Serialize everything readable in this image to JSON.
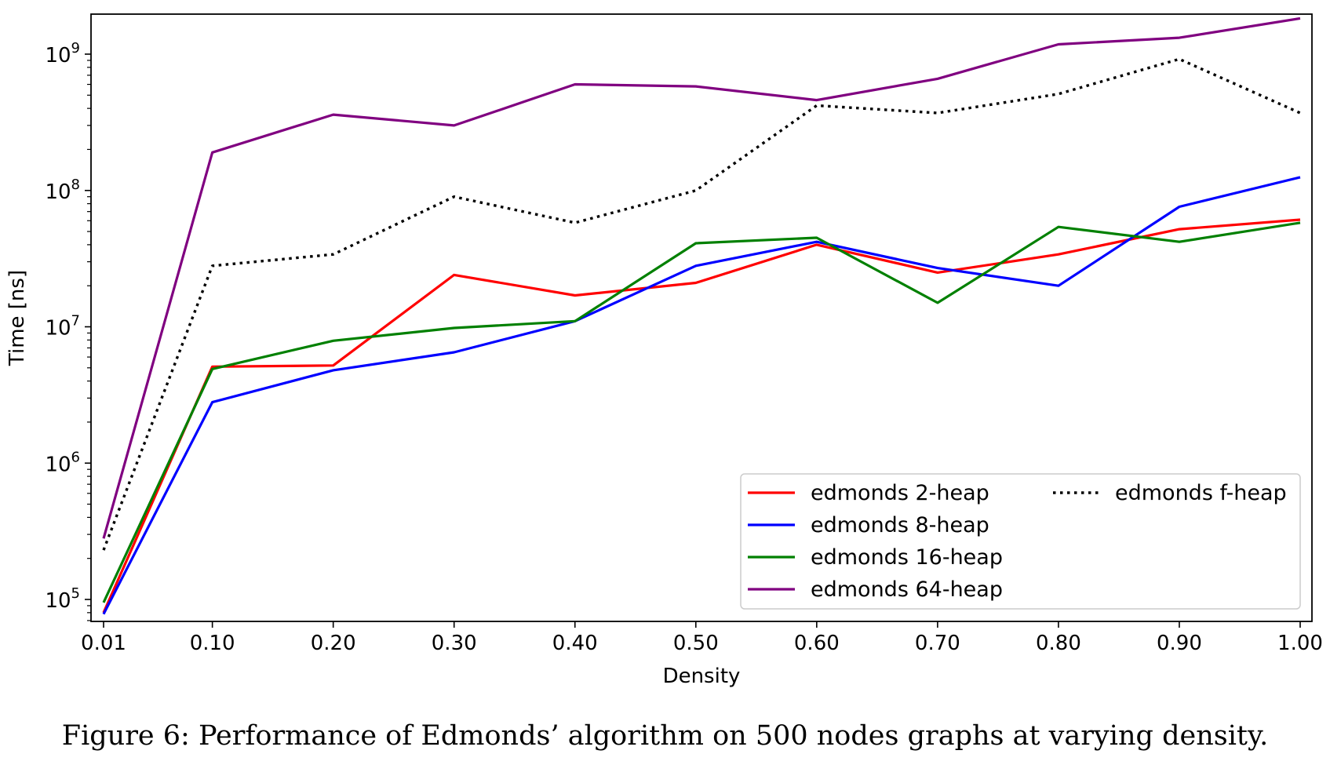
{
  "chart_data": {
    "type": "line",
    "title": "",
    "xlabel": "Density",
    "ylabel": "Time [ns]",
    "yscale": "log",
    "ylim": [
      70000,
      2100000000
    ],
    "xlim": [
      0.01,
      1.0
    ],
    "x": [
      0.01,
      0.1,
      0.2,
      0.3,
      0.4,
      0.5,
      0.6,
      0.7,
      0.8,
      0.9,
      1.0
    ],
    "x_tick_labels": [
      "0.01",
      "0.10",
      "0.20",
      "0.30",
      "0.40",
      "0.50",
      "0.60",
      "0.70",
      "0.80",
      "0.90",
      "1.00"
    ],
    "y_ticks": [
      {
        "value": 100000,
        "base": "10",
        "exp": "5"
      },
      {
        "value": 1000000,
        "base": "10",
        "exp": "6"
      },
      {
        "value": 10000000,
        "base": "10",
        "exp": "7"
      },
      {
        "value": 100000000,
        "base": "10",
        "exp": "8"
      },
      {
        "value": 1000000000,
        "base": "10",
        "exp": "9"
      }
    ],
    "grid": false,
    "legend_position": "lower-right",
    "series": [
      {
        "name": "edmonds 2-heap",
        "color": "#ff0000",
        "style": "solid",
        "values": [
          80000,
          5100000,
          5200000,
          24000000,
          17000000,
          21000000,
          40000000,
          25000000,
          34000000,
          52000000,
          61000000
        ]
      },
      {
        "name": "edmonds 8-heap",
        "color": "#0000ff",
        "style": "solid",
        "values": [
          78000,
          2800000,
          4800000,
          6500000,
          11000000,
          28000000,
          42000000,
          27000000,
          20000000,
          76000000,
          125000000
        ]
      },
      {
        "name": "edmonds 16-heap",
        "color": "#008000",
        "style": "solid",
        "values": [
          95000,
          4900000,
          7900000,
          9800000,
          11000000,
          41000000,
          45000000,
          15000000,
          54000000,
          42000000,
          58000000
        ]
      },
      {
        "name": "edmonds 64-heap",
        "color": "#800080",
        "style": "solid",
        "values": [
          280000,
          190000000,
          360000000,
          300000000,
          600000000,
          580000000,
          460000000,
          660000000,
          1180000000,
          1320000000,
          1830000000
        ]
      },
      {
        "name": "edmonds f-heap",
        "color": "#000000",
        "style": "dotted",
        "values": [
          230000,
          28000000,
          34000000,
          90000000,
          58000000,
          100000000,
          420000000,
          370000000,
          510000000,
          920000000,
          370000000
        ]
      }
    ]
  },
  "caption": "Figure 6:  Performance of Edmonds’ algorithm on 500 nodes graphs at varying density."
}
